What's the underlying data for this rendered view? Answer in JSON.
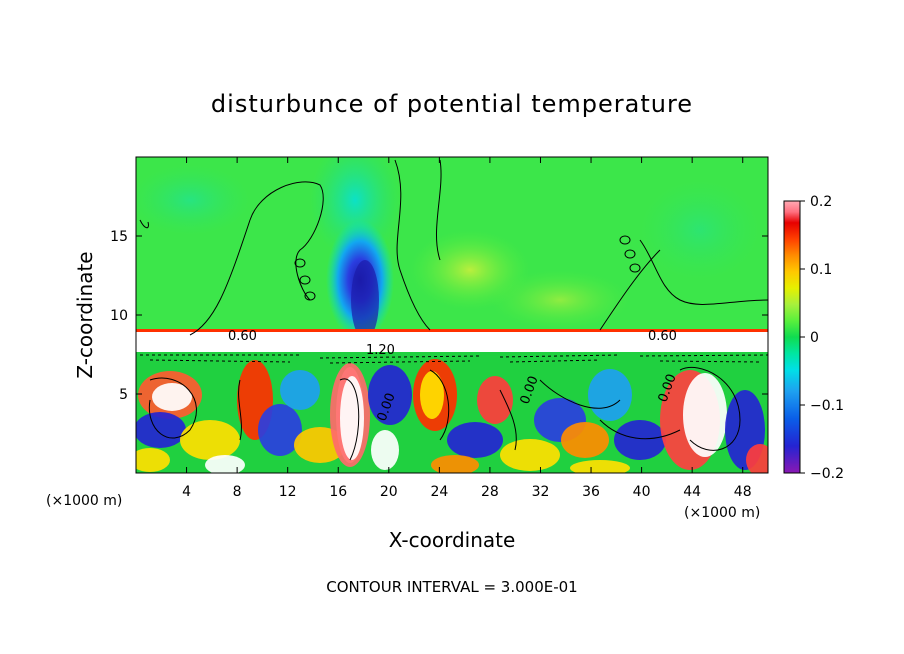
{
  "chart_data": {
    "type": "heatmap",
    "title": "disturbunce of potential temperature",
    "xlabel": "X-coordinate",
    "ylabel": "Z-coordinate",
    "x_unit": "(×1000 m)",
    "y_unit": "(×1000 m)",
    "xlim": [
      0,
      50
    ],
    "ylim": [
      0,
      20
    ],
    "x_ticks": [
      "4",
      "8",
      "12",
      "16",
      "20",
      "24",
      "28",
      "32",
      "36",
      "40",
      "44",
      "48"
    ],
    "y_ticks": [
      "5",
      "10",
      "15"
    ],
    "colorbar": {
      "range": [
        -0.2,
        0.2
      ],
      "tick_labels": [
        "0.2",
        "0.1",
        "0",
        "−0.1",
        "−0.2"
      ],
      "tick_values": [
        0.2,
        0.1,
        0,
        -0.1,
        -0.2
      ],
      "colors": [
        "#8a18b4",
        "#2424d2",
        "#0a5ee8",
        "#1ea0f0",
        "#00e0e6",
        "#00e6a0",
        "#10dc50",
        "#5af03c",
        "#a8f03c",
        "#e6f000",
        "#ffc800",
        "#ff8c00",
        "#ff4000",
        "#e60000",
        "#ff7080",
        "#ffaab4"
      ]
    },
    "contour_labels": [
      "0.60",
      "1.20",
      "0.60",
      "0.00",
      "0.00",
      "0.00"
    ],
    "contour_interval_label": "CONTOUR INTERVAL = 3.000E-01"
  }
}
